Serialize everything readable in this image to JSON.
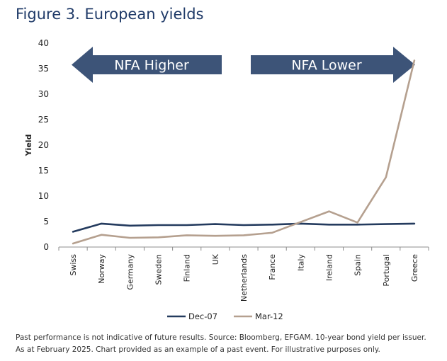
{
  "title": "Figure 3. European yields",
  "note": "Past performance is not indicative of future results. Source: Bloomberg, EFGAM. 10-year bond yield per issuer. As at February 2025. Chart provided as an example of a past event. For illustrative purposes only.",
  "chart_data": {
    "type": "line",
    "categories": [
      "Swiss",
      "Norway",
      "Germany",
      "Sweden",
      "Finland",
      "UK",
      "Netherlands",
      "France",
      "Italy",
      "Ireland",
      "Spain",
      "Portugal",
      "Greece"
    ],
    "series": [
      {
        "name": "Dec-07",
        "color": "#243b5e",
        "values": [
          3.0,
          4.6,
          4.2,
          4.3,
          4.3,
          4.5,
          4.3,
          4.4,
          4.6,
          4.4,
          4.4,
          4.5,
          4.6
        ]
      },
      {
        "name": "Mar-12",
        "color": "#b5a08f",
        "values": [
          0.7,
          2.4,
          1.8,
          1.9,
          2.3,
          2.2,
          2.3,
          2.8,
          4.9,
          7.0,
          4.8,
          13.7,
          36.6
        ]
      }
    ],
    "ylabel": "Yield",
    "xlabel": "",
    "ylim": [
      0,
      40
    ],
    "yticks": [
      0,
      5,
      10,
      15,
      20,
      25,
      30,
      35,
      40
    ],
    "grid": false,
    "legend": "bottom",
    "annotations": [
      {
        "text": "NFA Higher",
        "direction": "left",
        "color": "#3d5478"
      },
      {
        "text": "NFA Lower",
        "direction": "right",
        "color": "#3d5478"
      }
    ]
  }
}
